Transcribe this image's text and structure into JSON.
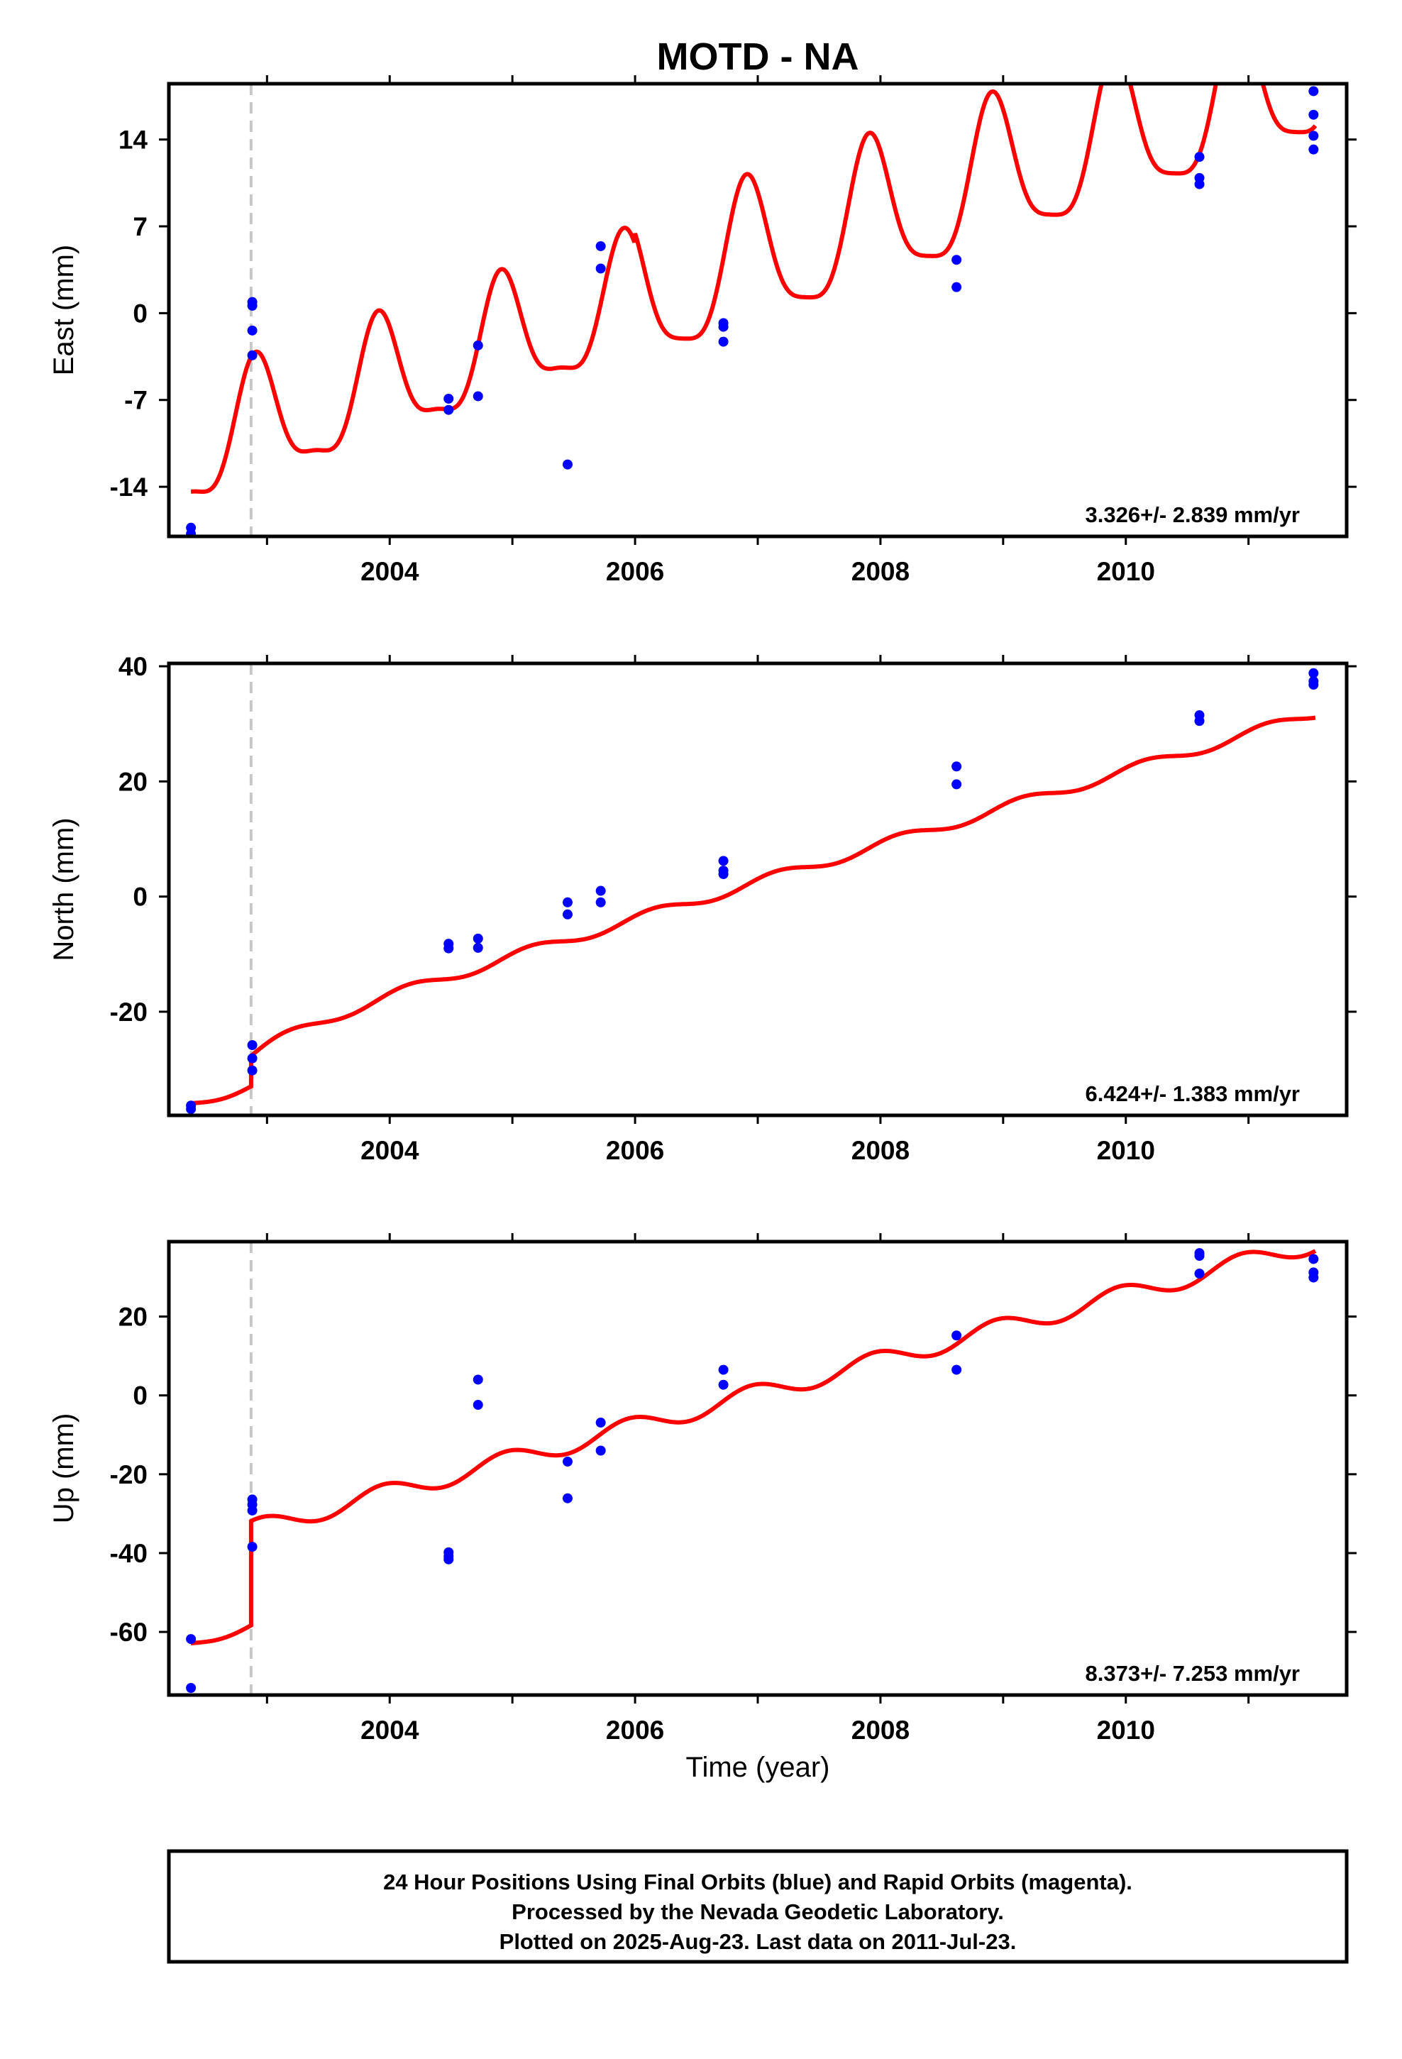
{
  "chart_data": {
    "title": "MOTD - NA",
    "xlabel": "Time (year)",
    "x_ticks": [
      2004,
      2006,
      2008,
      2010
    ],
    "xlim": [
      2002.2,
      2011.8
    ],
    "equipment_change": 2002.87,
    "colors": {
      "model": "#ff0000",
      "final": "#0000ff",
      "rapid": "#ff00ff",
      "marker": "#c8c8c8"
    },
    "panels": [
      {
        "type": "scatter",
        "ylabel": "East (mm)",
        "ylim": [
          -18,
          18.5
        ],
        "y_ticks": [
          -14,
          -7,
          0,
          7,
          14
        ],
        "rate": "3.326+/- 2.839 mm/yr",
        "points": [
          [
            2002.38,
            -17.3
          ],
          [
            2002.38,
            -17.8
          ],
          [
            2002.88,
            0.9
          ],
          [
            2002.88,
            0.6
          ],
          [
            2002.88,
            -1.4
          ],
          [
            2002.88,
            -3.4
          ],
          [
            2004.48,
            -6.9
          ],
          [
            2004.48,
            -7.8
          ],
          [
            2004.72,
            -2.6
          ],
          [
            2004.72,
            -6.7
          ],
          [
            2005.45,
            -12.2
          ],
          [
            2005.72,
            5.4
          ],
          [
            2005.72,
            3.6
          ],
          [
            2006.72,
            -0.8
          ],
          [
            2006.72,
            -1.1
          ],
          [
            2006.72,
            -2.3
          ],
          [
            2008.62,
            4.3
          ],
          [
            2008.62,
            2.1
          ],
          [
            2010.6,
            12.6
          ],
          [
            2010.6,
            10.9
          ],
          [
            2010.6,
            10.4
          ],
          [
            2011.53,
            17.9
          ],
          [
            2011.53,
            16.0
          ],
          [
            2011.53,
            14.3
          ],
          [
            2011.53,
            13.2
          ]
        ]
      },
      {
        "type": "scatter",
        "ylabel": "North (mm)",
        "ylim": [
          -38,
          40.5
        ],
        "y_ticks": [
          -20,
          0,
          20,
          40
        ],
        "rate": "6.424+/- 1.383 mm/yr",
        "points": [
          [
            2002.38,
            -36.3
          ],
          [
            2002.38,
            -36.9
          ],
          [
            2002.88,
            -25.8
          ],
          [
            2002.88,
            -28.1
          ],
          [
            2002.88,
            -30.2
          ],
          [
            2004.48,
            -8.2
          ],
          [
            2004.48,
            -9.0
          ],
          [
            2004.72,
            -7.3
          ],
          [
            2004.72,
            -8.9
          ],
          [
            2005.45,
            -1.0
          ],
          [
            2005.45,
            -3.1
          ],
          [
            2005.72,
            1.0
          ],
          [
            2005.72,
            -1.0
          ],
          [
            2006.72,
            6.2
          ],
          [
            2006.72,
            4.5
          ],
          [
            2006.72,
            3.9
          ],
          [
            2008.62,
            22.6
          ],
          [
            2008.62,
            19.5
          ],
          [
            2010.6,
            31.5
          ],
          [
            2010.6,
            30.5
          ],
          [
            2011.53,
            38.8
          ],
          [
            2011.53,
            37.4
          ],
          [
            2011.53,
            36.8
          ]
        ]
      },
      {
        "type": "scatter",
        "ylabel": "Up (mm)",
        "ylim": [
          -76,
          39
        ],
        "y_ticks": [
          -60,
          -40,
          -20,
          0,
          20
        ],
        "rate": "8.373+/- 7.253 mm/yr",
        "points": [
          [
            2002.38,
            -61.8
          ],
          [
            2002.38,
            -74.2
          ],
          [
            2002.88,
            -26.4
          ],
          [
            2002.88,
            -27.7
          ],
          [
            2002.88,
            -29.2
          ],
          [
            2002.88,
            -38.4
          ],
          [
            2004.48,
            -39.8
          ],
          [
            2004.48,
            -40.8
          ],
          [
            2004.48,
            -41.6
          ],
          [
            2004.72,
            4.0
          ],
          [
            2004.72,
            -2.4
          ],
          [
            2005.45,
            -16.8
          ],
          [
            2005.45,
            -26.1
          ],
          [
            2005.72,
            -6.9
          ],
          [
            2005.72,
            -14.0
          ],
          [
            2006.72,
            6.5
          ],
          [
            2006.72,
            2.7
          ],
          [
            2008.62,
            15.2
          ],
          [
            2008.62,
            6.5
          ],
          [
            2010.6,
            36.1
          ],
          [
            2010.6,
            35.4
          ],
          [
            2010.6,
            30.9
          ],
          [
            2011.53,
            34.6
          ],
          [
            2011.53,
            31.2
          ],
          [
            2011.53,
            29.9
          ]
        ]
      }
    ]
  },
  "footer": {
    "line1": "24 Hour Positions Using Final Orbits (blue) and Rapid Orbits (magenta).",
    "line2": "Processed by the Nevada Geodetic Laboratory.",
    "line3": "Plotted on 2025-Aug-23. Last data on 2011-Jul-23."
  }
}
